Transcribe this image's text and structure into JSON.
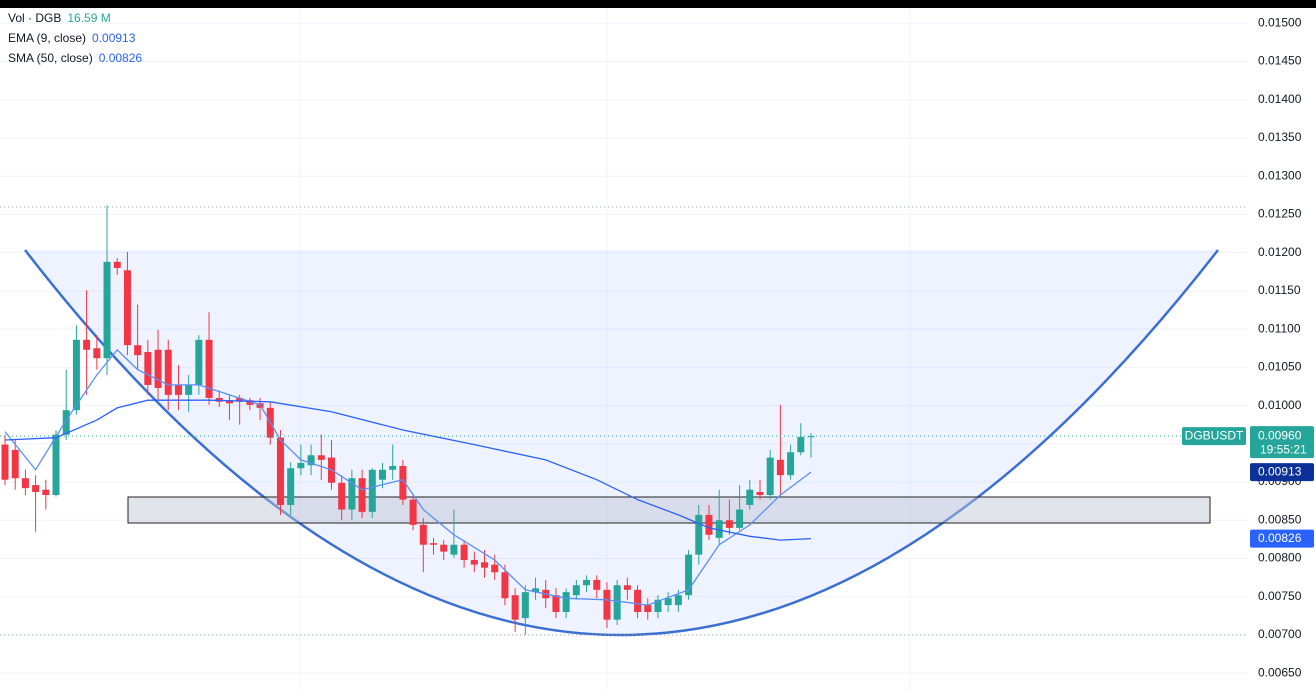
{
  "chart_data": {
    "type": "candlestick",
    "symbol": "DGBUSDT",
    "last_price_label": "0.00960",
    "countdown": "19:55:21",
    "volume": {
      "name": "Vol · DGB",
      "value_label": "16.59 M"
    },
    "up_color": "#26a69a",
    "down_color": "#f23645",
    "ylim": [
      0.00628,
      0.0152
    ],
    "yticks": [
      {
        "value": 0.0065,
        "label": "0.00650"
      },
      {
        "value": 0.007,
        "label": "0.00700"
      },
      {
        "value": 0.0075,
        "label": "0.00750"
      },
      {
        "value": 0.008,
        "label": "0.00800"
      },
      {
        "value": 0.0085,
        "label": "0.00850"
      },
      {
        "value": 0.009,
        "label": "0.00900"
      },
      {
        "value": 0.0095,
        "label": "0.00950"
      },
      {
        "value": 0.01,
        "label": "0.01000"
      },
      {
        "value": 0.0105,
        "label": "0.01050"
      },
      {
        "value": 0.011,
        "label": "0.01100"
      },
      {
        "value": 0.0115,
        "label": "0.01150"
      },
      {
        "value": 0.012,
        "label": "0.01200"
      },
      {
        "value": 0.0125,
        "label": "0.01250"
      },
      {
        "value": 0.013,
        "label": "0.01300"
      },
      {
        "value": 0.0135,
        "label": "0.01350"
      },
      {
        "value": 0.014,
        "label": "0.01400"
      },
      {
        "value": 0.0145,
        "label": "0.01450"
      },
      {
        "value": 0.015,
        "label": "0.01500"
      }
    ],
    "grid": true,
    "open": [
      0.00949,
      0.00942,
      0.00905,
      0.00896,
      0.0089,
      0.00883,
      0.00962,
      0.00994,
      0.01086,
      0.01075,
      0.01062,
      0.01188,
      0.01177,
      0.01079,
      0.0107,
      0.01073,
      0.01073,
      0.01027,
      0.01014,
      0.01027,
      0.01086,
      0.0101,
      0.01007,
      0.0101,
      0.01007,
      0.01003,
      0.00997,
      0.00958,
      0.0087,
      0.00918,
      0.00922,
      0.00935,
      0.00932,
      0.00899,
      0.00864,
      0.00905,
      0.00861,
      0.00903,
      0.00916,
      0.00921,
      0.00877,
      0.00844,
      0.0082,
      0.00818,
      0.00805,
      0.00818,
      0.00798,
      0.00795,
      0.00792,
      0.00782,
      0.00752,
      0.00722,
      0.00756,
      0.00759,
      0.00752,
      0.0073,
      0.00752,
      0.00765,
      0.00772,
      0.00759,
      0.0072,
      0.00765,
      0.00759,
      0.00739,
      0.0073,
      0.00739,
      0.00739,
      0.00752,
      0.00805,
      0.00857,
      0.00827,
      0.0085,
      0.0084,
      0.0087,
      0.00887,
      0.00883,
      0.00929,
      0.00909,
      0.00939,
      0.00959
    ],
    "high": [
      0.00962,
      0.00955,
      0.00916,
      0.00909,
      0.00903,
      0.00968,
      0.01047,
      0.01105,
      0.01151,
      0.01092,
      0.01262,
      0.01193,
      0.01201,
      0.01132,
      0.01086,
      0.01099,
      0.01086,
      0.01053,
      0.0104,
      0.01092,
      0.01122,
      0.0102,
      0.01014,
      0.01014,
      0.0101,
      0.0101,
      0.01005,
      0.00968,
      0.00926,
      0.00949,
      0.00949,
      0.00962,
      0.00955,
      0.00909,
      0.00916,
      0.00916,
      0.00918,
      0.00925,
      0.00949,
      0.00929,
      0.00883,
      0.00853,
      0.00827,
      0.00824,
      0.00864,
      0.00824,
      0.00809,
      0.00811,
      0.00805,
      0.00792,
      0.00761,
      0.00765,
      0.00775,
      0.00772,
      0.00761,
      0.00761,
      0.00772,
      0.00778,
      0.00778,
      0.00769,
      0.00772,
      0.00775,
      0.00765,
      0.00748,
      0.00752,
      0.00756,
      0.00759,
      0.00811,
      0.0087,
      0.0087,
      0.0089,
      0.00877,
      0.00896,
      0.00903,
      0.00903,
      0.00942,
      0.01001,
      0.00949,
      0.00977,
      0.00964
    ],
    "low": [
      0.00896,
      0.0089,
      0.00883,
      0.00835,
      0.00864,
      0.00881,
      0.00955,
      0.00988,
      0.01014,
      0.01047,
      0.0104,
      0.01171,
      0.01066,
      0.01047,
      0.01014,
      0.01007,
      0.00994,
      0.00994,
      0.00992,
      0.01014,
      0.01001,
      0.00998,
      0.00981,
      0.00975,
      0.00994,
      0.00981,
      0.00949,
      0.00857,
      0.00857,
      0.00909,
      0.00909,
      0.00903,
      0.0089,
      0.0085,
      0.0085,
      0.00853,
      0.00853,
      0.00892,
      0.00903,
      0.0087,
      0.00837,
      0.00782,
      0.00805,
      0.00798,
      0.00801,
      0.00788,
      0.00782,
      0.00775,
      0.00772,
      0.00739,
      0.00704,
      0.007,
      0.00746,
      0.00735,
      0.00722,
      0.00722,
      0.00746,
      0.00756,
      0.00748,
      0.00709,
      0.00713,
      0.00746,
      0.00722,
      0.0072,
      0.00722,
      0.0073,
      0.0073,
      0.00746,
      0.00792,
      0.00824,
      0.00818,
      0.00831,
      0.00837,
      0.00864,
      0.00877,
      0.00877,
      0.00883,
      0.00903,
      0.00935,
      0.00932
    ],
    "close": [
      0.00903,
      0.00905,
      0.00892,
      0.00887,
      0.00883,
      0.00962,
      0.00994,
      0.01086,
      0.01073,
      0.01062,
      0.01188,
      0.0118,
      0.01079,
      0.01066,
      0.01027,
      0.01023,
      0.01014,
      0.01014,
      0.01027,
      0.01086,
      0.0101,
      0.01005,
      0.01003,
      0.01005,
      0.01001,
      0.00997,
      0.00958,
      0.0087,
      0.00918,
      0.00925,
      0.00935,
      0.00929,
      0.00899,
      0.00864,
      0.00905,
      0.00861,
      0.00916,
      0.00916,
      0.00921,
      0.00877,
      0.00844,
      0.00818,
      0.00818,
      0.00809,
      0.00818,
      0.00798,
      0.00792,
      0.00788,
      0.00782,
      0.00748,
      0.0072,
      0.00756,
      0.00761,
      0.00748,
      0.0073,
      0.00756,
      0.00765,
      0.00772,
      0.00759,
      0.0072,
      0.00765,
      0.00759,
      0.0073,
      0.0073,
      0.00746,
      0.00748,
      0.00752,
      0.00805,
      0.00857,
      0.00831,
      0.0085,
      0.0084,
      0.00864,
      0.0089,
      0.00883,
      0.00932,
      0.00909,
      0.00939,
      0.00959,
      0.0096
    ],
    "indicators": [
      {
        "name": "EMA (9, close)",
        "color": "#5b8ff6",
        "value_label": "0.00913",
        "label_color": "#0c3299",
        "x": [
          0,
          3,
          6,
          9,
          11,
          13,
          16,
          19,
          22,
          25,
          27,
          29,
          32,
          35,
          39,
          41,
          44,
          48,
          51,
          55,
          59,
          63,
          67,
          70,
          73,
          76,
          79
        ],
        "values": [
          0.00966,
          0.00916,
          0.00981,
          0.0104,
          0.01073,
          0.01047,
          0.01027,
          0.01027,
          0.01014,
          0.01001,
          0.00955,
          0.00929,
          0.00916,
          0.0089,
          0.00903,
          0.00864,
          0.00831,
          0.00798,
          0.00759,
          0.00748,
          0.00746,
          0.00739,
          0.00759,
          0.00818,
          0.00844,
          0.00883,
          0.00913
        ]
      },
      {
        "name": "SMA (50, close)",
        "color": "#2962ff",
        "value_label": "0.00826",
        "label_color": "#2962ff",
        "x": [
          0,
          5,
          9,
          11,
          14,
          20,
          26,
          32,
          39,
          46,
          53,
          58,
          62,
          66,
          69,
          73,
          76,
          79
        ],
        "values": [
          0.00955,
          0.00958,
          0.00981,
          0.00997,
          0.01007,
          0.01007,
          0.01005,
          0.00992,
          0.00968,
          0.00949,
          0.00929,
          0.00903,
          0.00877,
          0.00857,
          0.0084,
          0.00829,
          0.00824,
          0.00826
        ]
      }
    ]
  }
}
